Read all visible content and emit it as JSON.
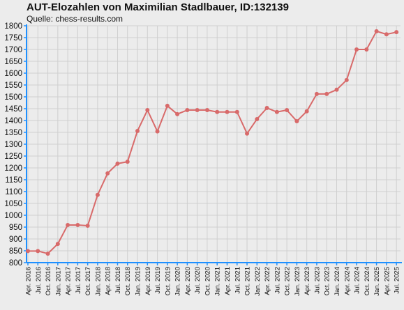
{
  "header": {
    "title": "AUT-Elozahlen von Maximilian Stadlbauer, ID:132139",
    "source": "Quelle: chess-results.com"
  },
  "colors": {
    "line": "#d86a6a",
    "grid": "#cfcfcf",
    "axis": "#1e90ff",
    "background": "#ececec"
  },
  "chart_data": {
    "type": "line",
    "title": "AUT-Elozahlen von Maximilian Stadlbauer, ID:132139",
    "subtitle": "Quelle: chess-results.com",
    "xlabel": "",
    "ylabel": "",
    "ylim": [
      800,
      1800
    ],
    "grid": true,
    "categories": [
      "Apr. 2016",
      "Jul. 2016",
      "Oct. 2016",
      "Jan. 2017",
      "Apr. 2017",
      "Jul. 2017",
      "Oct. 2017",
      "Jan. 2018",
      "Apr. 2018",
      "Jul. 2018",
      "Oct. 2018",
      "Jan. 2019",
      "Apr. 2019",
      "Jul. 2019",
      "Oct. 2019",
      "Jan. 2020",
      "Apr. 2020",
      "Jul. 2020",
      "Oct. 2020",
      "Jan. 2021",
      "Apr. 2021",
      "Jul. 2021",
      "Oct. 2021",
      "Jan. 2022",
      "Apr. 2022",
      "Jul. 2022",
      "Oct. 2022",
      "Jan. 2023",
      "Apr. 2023",
      "Jul. 2023",
      "Oct. 2023",
      "Jan. 2024",
      "Apr. 2024",
      "Jul. 2024",
      "Oct. 2024",
      "Jan. 2025",
      "Apr. 2025",
      "Jul. 2025"
    ],
    "y_ticks": [
      "800",
      "850",
      "900",
      "950",
      "1000",
      "1050",
      "1100",
      "1150",
      "1200",
      "1250",
      "1300",
      "1350",
      "1400",
      "1450",
      "1500",
      "1550",
      "1600",
      "1650",
      "1700",
      "1750",
      "1800"
    ],
    "series": [
      {
        "values": [
          849,
          849,
          838,
          879,
          959,
          959,
          956,
          1086,
          1177,
          1218,
          1226,
          1356,
          1444,
          1354,
          1462,
          1427,
          1444,
          1444,
          1444,
          1436,
          1436,
          1436,
          1345,
          1406,
          1453,
          1436,
          1444,
          1397,
          1439,
          1512,
          1512,
          1530,
          1571,
          1700,
          1700,
          1777,
          1764,
          1773
        ]
      }
    ]
  }
}
